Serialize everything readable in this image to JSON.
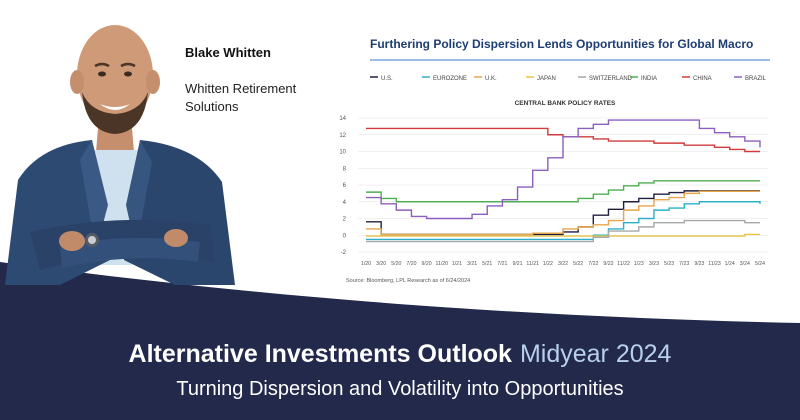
{
  "author": {
    "name": "Blake Whitten",
    "company": "Whitten Retirement Solutions"
  },
  "headline": {
    "main": "Alternative Investments Outlook",
    "accent": "Midyear 2024",
    "subtitle": "Turning Dispersion and Volatility into Opportunities"
  },
  "colors": {
    "navy": "#22294a",
    "chart_title": "#1d3d73",
    "headline_accent": "#b8cfee"
  },
  "chart_data": {
    "type": "line",
    "title": "Furthering Policy Dispersion Lends Opportunities for Global Macro",
    "subtitle": "CENTRAL BANK POLICY RATES",
    "source": "Source: Bloomberg, LPL Research as of 6/24/2024",
    "legend_position": "top",
    "grid": true,
    "ylim": [
      -2,
      14
    ],
    "yticks": [
      "14",
      "12",
      "10",
      "8",
      "6",
      "4",
      "2",
      "0",
      "-2"
    ],
    "yticks_values": [
      14,
      12,
      10,
      8,
      6,
      4,
      2,
      0,
      -2
    ],
    "x": [
      "1/20",
      "3/20",
      "5/20",
      "7/20",
      "9/20",
      "11/20",
      "1/21",
      "3/21",
      "5/21",
      "7/21",
      "9/21",
      "11/21",
      "1/22",
      "3/22",
      "5/22",
      "7/22",
      "9/22",
      "11/22",
      "1/23",
      "3/23",
      "5/23",
      "7/23",
      "9/23",
      "11/23",
      "1/24",
      "3/24",
      "5/24"
    ],
    "series": [
      {
        "name": "U.S.",
        "color": "#1f1f3d",
        "values": [
          1.6,
          0.1,
          0.1,
          0.1,
          0.1,
          0.1,
          0.1,
          0.1,
          0.1,
          0.1,
          0.1,
          0.1,
          0.1,
          0.4,
          1.0,
          2.4,
          3.1,
          4.0,
          4.4,
          4.9,
          5.1,
          5.3,
          5.3,
          5.3,
          5.3,
          5.3,
          5.3
        ]
      },
      {
        "name": "EUROZONE",
        "color": "#2ab0c8",
        "values": [
          -0.5,
          -0.5,
          -0.5,
          -0.5,
          -0.5,
          -0.5,
          -0.5,
          -0.5,
          -0.5,
          -0.5,
          -0.5,
          -0.5,
          -0.5,
          -0.5,
          -0.5,
          0.0,
          0.75,
          1.5,
          2.0,
          3.0,
          3.25,
          3.75,
          4.0,
          4.0,
          4.0,
          4.0,
          3.75
        ]
      },
      {
        "name": "U.K.",
        "color": "#e8a54a",
        "values": [
          0.75,
          0.1,
          0.1,
          0.1,
          0.1,
          0.1,
          0.1,
          0.1,
          0.1,
          0.1,
          0.1,
          0.25,
          0.25,
          0.75,
          1.0,
          1.25,
          1.75,
          3.0,
          3.5,
          4.25,
          4.5,
          5.0,
          5.25,
          5.25,
          5.25,
          5.25,
          5.25
        ]
      },
      {
        "name": "JAPAN",
        "color": "#e8c547",
        "values": [
          -0.1,
          -0.1,
          -0.1,
          -0.1,
          -0.1,
          -0.1,
          -0.1,
          -0.1,
          -0.1,
          -0.1,
          -0.1,
          -0.1,
          -0.1,
          -0.1,
          -0.1,
          -0.1,
          -0.1,
          -0.1,
          -0.1,
          -0.1,
          -0.1,
          -0.1,
          -0.1,
          -0.1,
          -0.1,
          0.1,
          0.1
        ]
      },
      {
        "name": "SWITZERLAND",
        "color": "#a8a8a8",
        "values": [
          -0.75,
          -0.75,
          -0.75,
          -0.75,
          -0.75,
          -0.75,
          -0.75,
          -0.75,
          -0.75,
          -0.75,
          -0.75,
          -0.75,
          -0.75,
          -0.75,
          -0.75,
          -0.25,
          0.5,
          0.5,
          1.0,
          1.5,
          1.5,
          1.75,
          1.75,
          1.75,
          1.75,
          1.5,
          1.5
        ]
      },
      {
        "name": "INDIA",
        "color": "#4caf50",
        "values": [
          5.15,
          4.4,
          4.0,
          4.0,
          4.0,
          4.0,
          4.0,
          4.0,
          4.0,
          4.0,
          4.0,
          4.0,
          4.0,
          4.0,
          4.4,
          4.9,
          5.4,
          5.9,
          6.25,
          6.5,
          6.5,
          6.5,
          6.5,
          6.5,
          6.5,
          6.5,
          6.5
        ]
      },
      {
        "name": "CHINA",
        "color": "#d23b3b",
        "values": [
          12.75,
          12.75,
          12.75,
          12.75,
          12.75,
          12.75,
          12.75,
          12.75,
          12.75,
          12.75,
          12.75,
          12.75,
          12.0,
          11.75,
          11.75,
          11.5,
          11.25,
          11.25,
          11.25,
          11.0,
          11.0,
          10.75,
          10.75,
          10.5,
          10.25,
          10.0,
          10.0
        ]
      },
      {
        "name": "BRAZIL",
        "color": "#8b5fbf",
        "values": [
          4.5,
          3.75,
          3.0,
          2.25,
          2.0,
          2.0,
          2.0,
          2.5,
          3.5,
          4.25,
          5.75,
          7.75,
          9.25,
          11.75,
          12.75,
          13.25,
          13.75,
          13.75,
          13.75,
          13.75,
          13.75,
          13.75,
          12.75,
          12.25,
          11.75,
          11.25,
          10.5
        ]
      }
    ]
  }
}
